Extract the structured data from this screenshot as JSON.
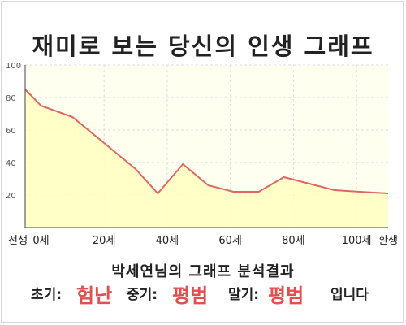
{
  "title": "재미로 보는 당신의 인생 그래프",
  "summary": "박세연님의 그래프 분석결과",
  "result": {
    "early_label": "초기:",
    "early_value": "험난",
    "mid_label": "중기:",
    "mid_value": "평범",
    "late_label": "말기:",
    "late_value": "평범",
    "suffix": "입니다"
  },
  "colors": {
    "line": "#e06666",
    "fill": "#ffffc0",
    "plot_bg": "#fffff0",
    "highlight": "#e05050"
  },
  "chart_data": {
    "type": "area",
    "title": "재미로 보는 당신의 인생 그래프",
    "xlabel": "",
    "ylabel": "",
    "ylim": [
      0,
      100
    ],
    "xlim": [
      -5,
      110
    ],
    "yticks": [
      20,
      40,
      60,
      80,
      100
    ],
    "grid": true,
    "xticks": [
      {
        "value": -5,
        "label": "전생"
      },
      {
        "value": 0,
        "label": "0세"
      },
      {
        "value": 20,
        "label": "20세"
      },
      {
        "value": 40,
        "label": "40세"
      },
      {
        "value": 60,
        "label": "60세"
      },
      {
        "value": 80,
        "label": "80세"
      },
      {
        "value": 100,
        "label": "100세"
      },
      {
        "value": 110,
        "label": "환생"
      }
    ],
    "series": [
      {
        "x": [
          -5,
          0,
          10,
          20,
          30,
          37,
          45,
          53,
          61,
          69,
          77,
          85,
          93,
          101,
          110
        ],
        "values": [
          85,
          75,
          68,
          52,
          36,
          21,
          39,
          26,
          22,
          22,
          31,
          27,
          23,
          22,
          21
        ]
      }
    ]
  }
}
